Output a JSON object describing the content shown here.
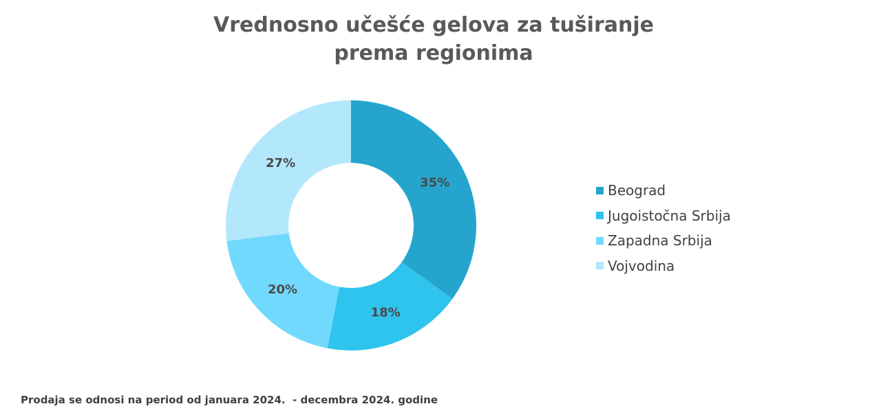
{
  "chart_data": {
    "type": "pie",
    "title": "Vrednosno učešće gelova za tuširanje prema regionima",
    "title_lines": [
      "Vrednosno učešće gelova za tuširanje",
      "prema regionima"
    ],
    "categories": [
      "Beograd",
      "Jugoistočna Srbija",
      "Zapadna Srbija",
      "Vojvodina"
    ],
    "values": [
      35,
      18,
      20,
      27
    ],
    "value_labels": [
      "35%",
      "18%",
      "20%",
      "27%"
    ],
    "colors": [
      "#25A5CD",
      "#2EC4EE",
      "#70D9FD",
      "#B3E7FC"
    ],
    "donut": true,
    "legend_position": "right"
  },
  "footnote": "Prodaja se odnosi na period od januara 2024.  - decembra 2024. godine"
}
